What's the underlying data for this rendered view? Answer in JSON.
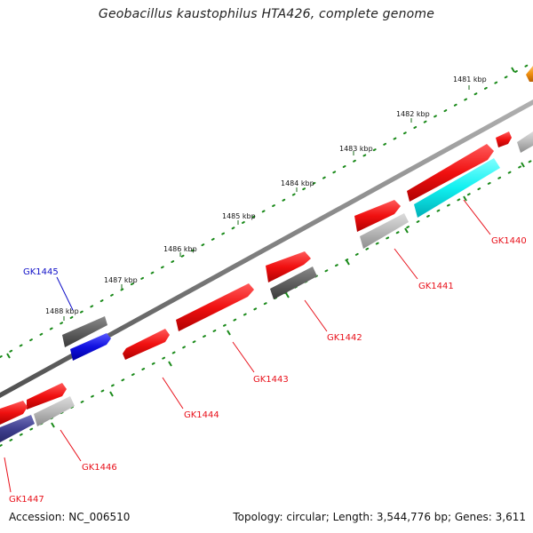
{
  "title": "Geobacillus kaustophilus HTA426, complete genome",
  "footer": {
    "accession": "Accession: NC_006510",
    "summary": "Topology: circular; Length: 3,544,776 bp; Genes: 3,611"
  },
  "ticks": [
    {
      "label": "1481 kbp"
    },
    {
      "label": "1482 kbp"
    },
    {
      "label": "1483 kbp"
    },
    {
      "label": "1484 kbp"
    },
    {
      "label": "1485 kbp"
    },
    {
      "label": "1486 kbp"
    },
    {
      "label": "1487 kbp"
    },
    {
      "label": "1488 kbp"
    }
  ],
  "gene_labels": [
    {
      "name": "GK1440",
      "color": "#e8101a"
    },
    {
      "name": "GK1441",
      "color": "#e8101a"
    },
    {
      "name": "GK1442",
      "color": "#e8101a"
    },
    {
      "name": "GK1443",
      "color": "#e8101a"
    },
    {
      "name": "GK1444",
      "color": "#e8101a"
    },
    {
      "name": "GK1445",
      "color": "#1010c8"
    },
    {
      "name": "GK1446",
      "color": "#e8101a"
    },
    {
      "name": "GK1447",
      "color": "#e8101a"
    }
  ],
  "colors": {
    "cds_forward": "#f01010",
    "cds_dark": "#606060",
    "cds_light": "#b8b8b8",
    "cds_cyan": "#10f0f0",
    "cds_blue": "#1010e0",
    "cds_navy": "#404090",
    "cds_orange": "#f09010",
    "backbone": "#808080",
    "tick_dots": "#1a8a1a"
  }
}
